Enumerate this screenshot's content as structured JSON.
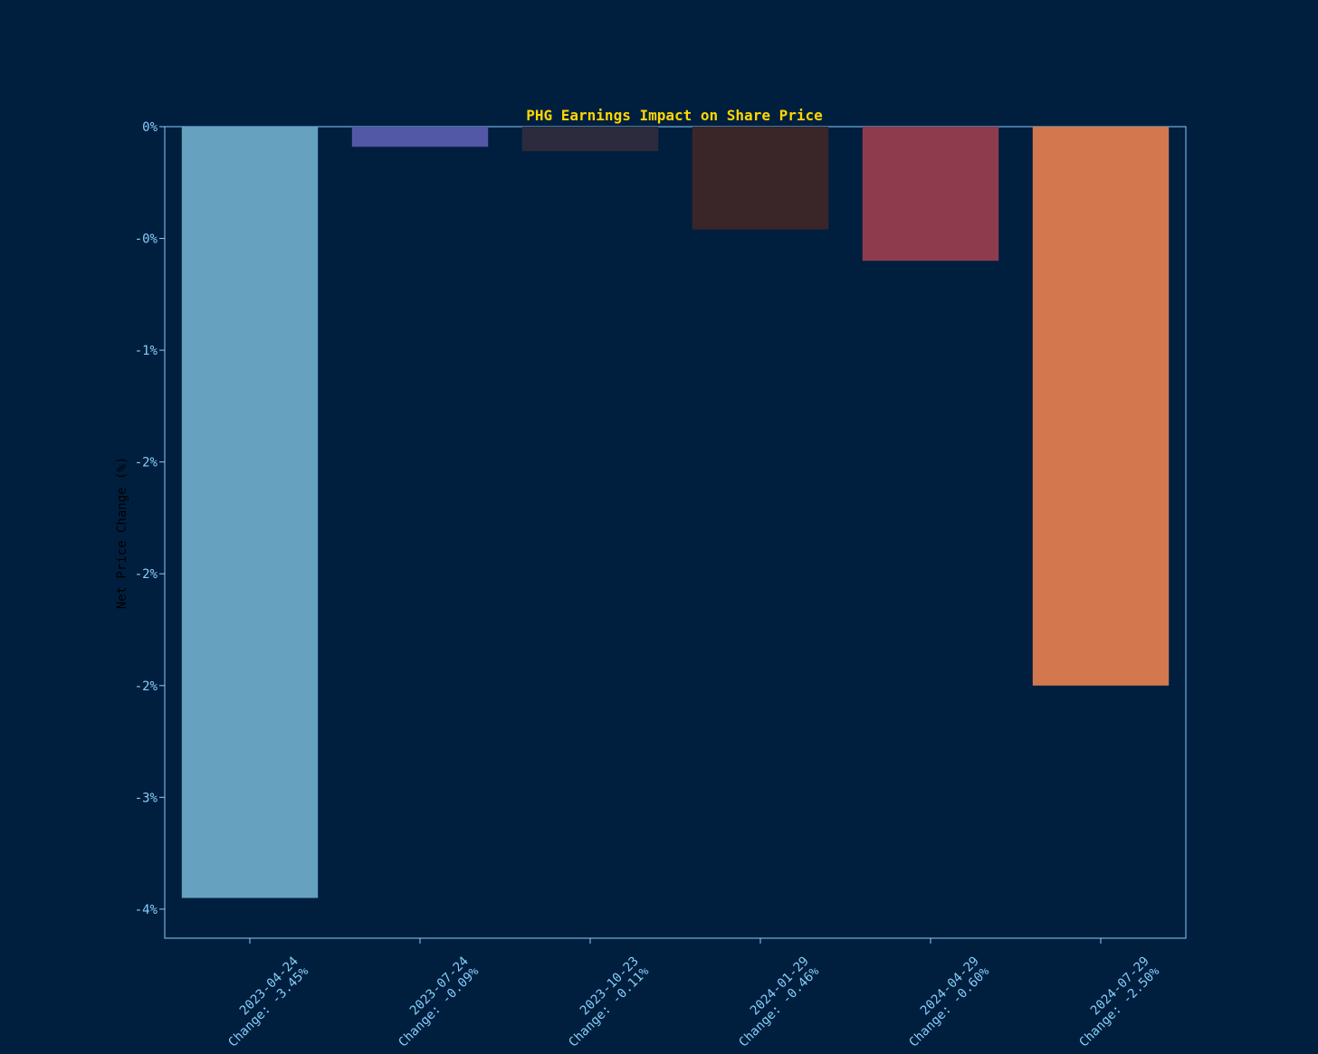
{
  "chart_data": {
    "type": "bar",
    "title": "PHG Earnings Impact on Share Price",
    "ylabel": "Net Price Change (%)",
    "xlabel": "",
    "categories": [
      "2023-04-24",
      "2023-07-24",
      "2023-10-23",
      "2024-01-29",
      "2024-04-29",
      "2024-07-29"
    ],
    "category_annotations": [
      "Change: -3.45%",
      "Change: -0.09%",
      "Change: -0.11%",
      "Change: -0.46%",
      "Change: -0.60%",
      "Change: -2.50%"
    ],
    "values": [
      -3.45,
      -0.09,
      -0.11,
      -0.46,
      -0.6,
      -2.5
    ],
    "bar_colors": [
      "#67a1c0",
      "#5358a6",
      "#2c2b3d",
      "#3a2629",
      "#8e3c4d",
      "#d3784e"
    ],
    "ylim": [
      -3.63,
      0
    ],
    "yticks": [
      0,
      -0.5,
      -1.0,
      -1.5,
      -2.0,
      -2.5,
      -3.0,
      -3.5
    ],
    "ytick_labels": [
      "0%",
      "-0%",
      "-1%",
      "-2%",
      "-2%",
      "-2%",
      "-3%",
      "-4%"
    ],
    "grid": false,
    "legend": "none",
    "colors": {
      "background": "#001f3f",
      "title": "#ffd700",
      "ticks": "#87cefa",
      "ylabel": "#000000",
      "frame": "#87cefa"
    }
  }
}
